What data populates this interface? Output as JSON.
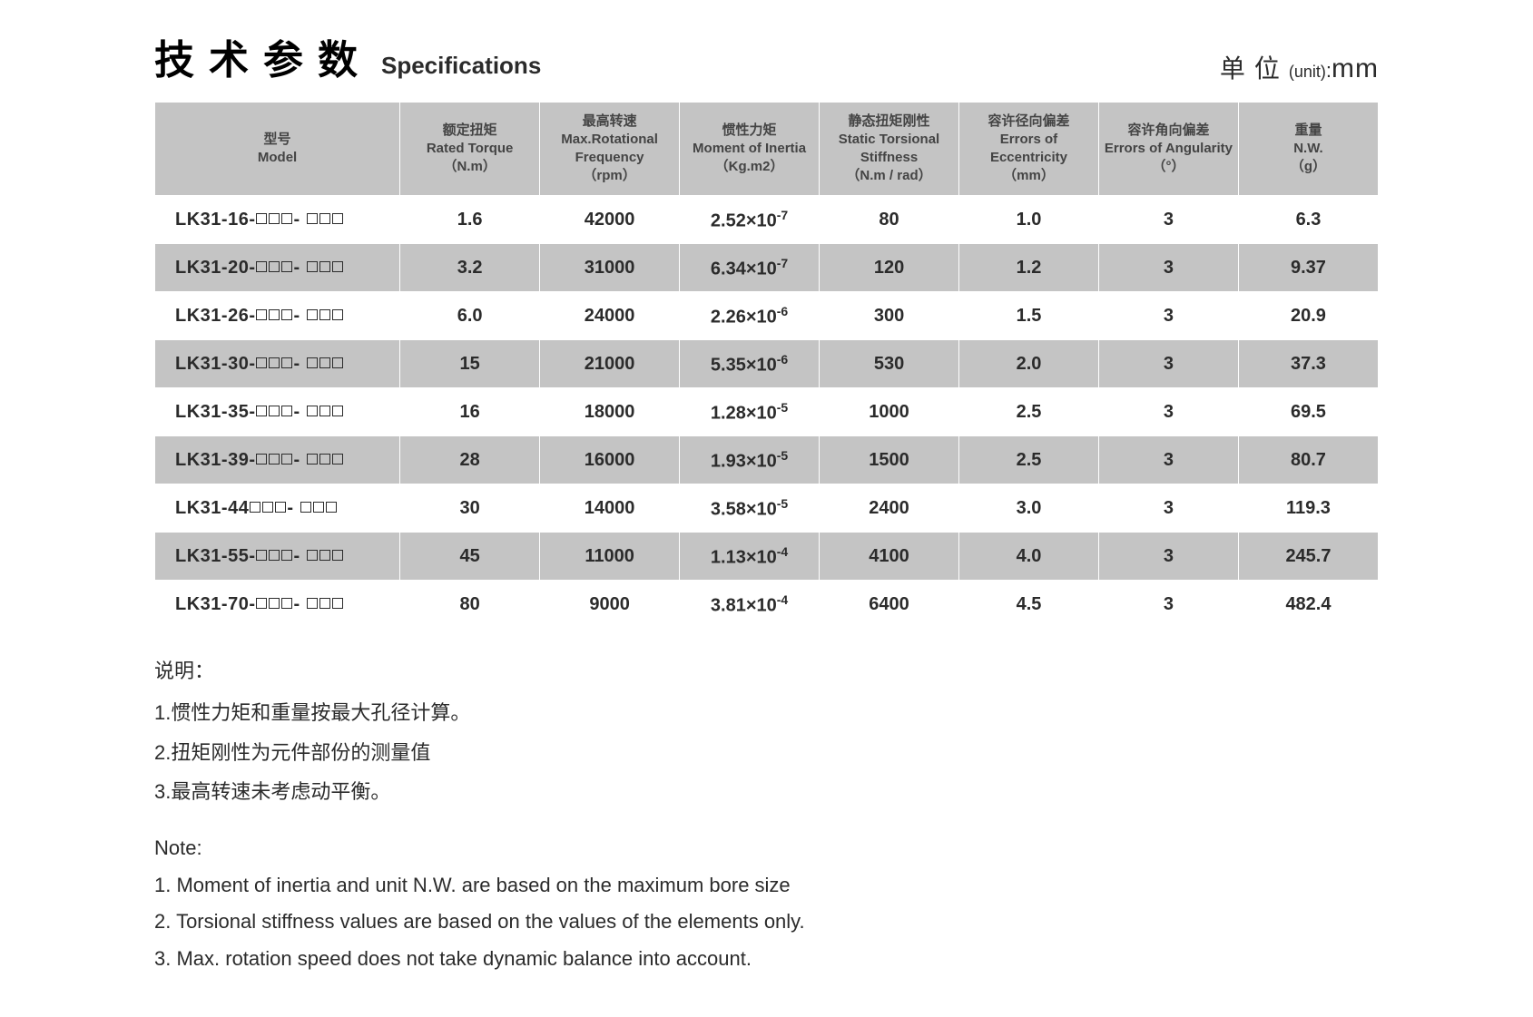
{
  "title_cn": "技术参数",
  "title_en": "Specifications",
  "unit_cn": "单位",
  "unit_paren": "(unit)",
  "unit_colon": ":",
  "unit_mm": "mm",
  "table": {
    "header_bg": "#c4c4c4",
    "row_alt_bg": "#c4c4c4",
    "row_bg": "#ffffff",
    "border_color": "#ffffff",
    "columns": [
      {
        "cn": "型号",
        "en": "Model",
        "unit": ""
      },
      {
        "cn": "额定扭矩",
        "en": "Rated Torque",
        "unit": "（N.m）"
      },
      {
        "cn": "最高转速",
        "en": "Max.Rotational Frequency",
        "unit": "（rpm）"
      },
      {
        "cn": "惯性力矩",
        "en": "Moment of Inertia",
        "unit": "（Kg.m2）"
      },
      {
        "cn": "静态扭矩刚性",
        "en": "Static Torsional Stiffness",
        "unit": "（N.m / rad）"
      },
      {
        "cn": "容许径向偏差",
        "en": "Errors of Eccentricity",
        "unit": "（mm）"
      },
      {
        "cn": "容许角向偏差",
        "en": "Errors of Angularity",
        "unit": "（°）"
      },
      {
        "cn": "重量",
        "en": "N.W.",
        "unit": "（g）"
      }
    ],
    "rows": [
      {
        "model": "LK31-16-□□□- □□□",
        "torque": "1.6",
        "rpm": "42000",
        "inertia_base": "2.52×10",
        "inertia_exp": "-7",
        "stiff": "80",
        "ecc": "1.0",
        "ang": "3",
        "nw": "6.3"
      },
      {
        "model": "LK31-20-□□□- □□□",
        "torque": "3.2",
        "rpm": "31000",
        "inertia_base": "6.34×10",
        "inertia_exp": "-7",
        "stiff": "120",
        "ecc": "1.2",
        "ang": "3",
        "nw": "9.37"
      },
      {
        "model": "LK31-26-□□□- □□□",
        "torque": "6.0",
        "rpm": "24000",
        "inertia_base": "2.26×10",
        "inertia_exp": "-6",
        "stiff": "300",
        "ecc": "1.5",
        "ang": "3",
        "nw": "20.9"
      },
      {
        "model": "LK31-30-□□□- □□□",
        "torque": "15",
        "rpm": "21000",
        "inertia_base": "5.35×10",
        "inertia_exp": "-6",
        "stiff": "530",
        "ecc": "2.0",
        "ang": "3",
        "nw": "37.3"
      },
      {
        "model": "LK31-35-□□□- □□□",
        "torque": "16",
        "rpm": "18000",
        "inertia_base": "1.28×10",
        "inertia_exp": "-5",
        "stiff": "1000",
        "ecc": "2.5",
        "ang": "3",
        "nw": "69.5"
      },
      {
        "model": "LK31-39-□□□- □□□",
        "torque": "28",
        "rpm": "16000",
        "inertia_base": "1.93×10",
        "inertia_exp": "-5",
        "stiff": "1500",
        "ecc": "2.5",
        "ang": "3",
        "nw": "80.7"
      },
      {
        "model": "LK31-44□□□- □□□",
        "torque": "30",
        "rpm": "14000",
        "inertia_base": "3.58×10",
        "inertia_exp": "-5",
        "stiff": "2400",
        "ecc": "3.0",
        "ang": "3",
        "nw": "119.3"
      },
      {
        "model": "LK31-55-□□□- □□□",
        "torque": "45",
        "rpm": "11000",
        "inertia_base": "1.13×10",
        "inertia_exp": "-4",
        "stiff": "4100",
        "ecc": "4.0",
        "ang": "3",
        "nw": "245.7"
      },
      {
        "model": "LK31-70-□□□- □□□",
        "torque": "80",
        "rpm": "9000",
        "inertia_base": "3.81×10",
        "inertia_exp": "-4",
        "stiff": "6400",
        "ecc": "4.5",
        "ang": "3",
        "nw": "482.4"
      }
    ]
  },
  "notes_cn": {
    "head": "说明：",
    "lines": [
      "1.惯性力矩和重量按最大孔径计算。",
      "2.扭矩刚性为元件部份的测量值",
      "3.最高转速未考虑动平衡。"
    ]
  },
  "notes_en": {
    "head": "Note:",
    "lines": [
      "1. Moment of inertia and unit N.W. are based on the maximum bore size",
      "2. Torsional stiffness values are based on the values of the elements only.",
      "3. Max. rotation speed does not take dynamic balance into account."
    ]
  }
}
